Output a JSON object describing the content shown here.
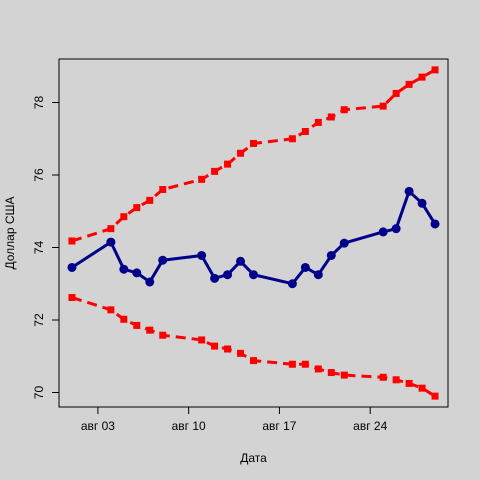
{
  "chart_data": {
    "type": "line",
    "title": "",
    "xlabel": "Дата",
    "ylabel": "Доллар США",
    "x_ticks": [
      {
        "date": "2020-08-03",
        "label": "авг 03"
      },
      {
        "date": "2020-08-10",
        "label": "авг 10"
      },
      {
        "date": "2020-08-17",
        "label": "авг 17"
      },
      {
        "date": "2020-08-24",
        "label": "авг 24"
      }
    ],
    "y_ticks": [
      70,
      72,
      74,
      76,
      78
    ],
    "xlim": [
      "2020-07-31",
      "2020-08-30"
    ],
    "ylim": [
      69.6,
      79.2
    ],
    "grid": false,
    "background": "#d3d3d3",
    "x": [
      "2020-08-01",
      "2020-08-04",
      "2020-08-05",
      "2020-08-06",
      "2020-08-07",
      "2020-08-08",
      "2020-08-11",
      "2020-08-12",
      "2020-08-13",
      "2020-08-14",
      "2020-08-15",
      "2020-08-18",
      "2020-08-19",
      "2020-08-20",
      "2020-08-21",
      "2020-08-22",
      "2020-08-25",
      "2020-08-26",
      "2020-08-27",
      "2020-08-28",
      "2020-08-29"
    ],
    "series": [
      {
        "color": "#00008b",
        "style": "solid",
        "marker": "circle",
        "values": [
          73.45,
          74.15,
          73.4,
          73.3,
          73.05,
          73.65,
          73.78,
          73.15,
          73.25,
          73.62,
          73.25,
          73.0,
          73.45,
          73.25,
          73.78,
          74.12,
          74.43,
          74.52,
          75.55,
          75.22,
          74.65
        ]
      },
      {
        "color": "#ff0000",
        "style": "dashed",
        "marker": "square",
        "values": [
          74.18,
          74.52,
          74.85,
          75.1,
          75.3,
          75.6,
          75.88,
          76.1,
          76.3,
          76.6,
          76.87,
          77.0,
          77.2,
          77.45,
          77.6,
          77.8,
          77.9,
          78.25,
          78.5,
          78.7,
          78.9
        ]
      },
      {
        "color": "#ff0000",
        "style": "dashed",
        "marker": "square",
        "values": [
          72.62,
          72.28,
          72.02,
          71.85,
          71.72,
          71.58,
          71.45,
          71.28,
          71.2,
          71.08,
          70.88,
          70.78,
          70.78,
          70.65,
          70.55,
          70.48,
          70.42,
          70.35,
          70.25,
          70.12,
          69.9
        ]
      }
    ]
  }
}
